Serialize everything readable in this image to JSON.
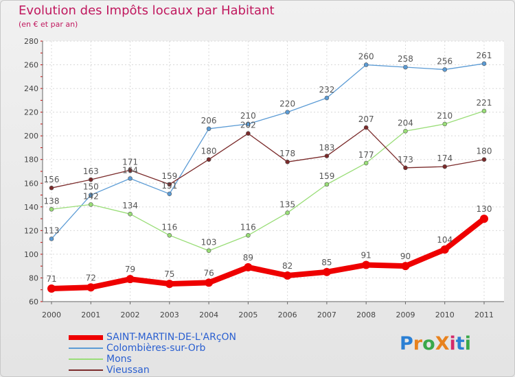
{
  "header": {
    "title": "Evolution des Impôts locaux par Habitant",
    "subtitle": "(en € et par an)"
  },
  "brand": {
    "text": "ProXiti",
    "colors": [
      "#2a7fd4",
      "#e8821e",
      "#3aa84a",
      "#e8821e",
      "#d42a6a",
      "#2a7fd4",
      "#3aa84a"
    ]
  },
  "chart_data": {
    "type": "line",
    "title": "Evolution des Impôts locaux par Habitant",
    "subtitle": "(en € et par an)",
    "xlabel": "",
    "ylabel": "",
    "categories": [
      "2000",
      "2001",
      "2002",
      "2003",
      "2004",
      "2005",
      "2006",
      "2007",
      "2008",
      "2009",
      "2010",
      "2011"
    ],
    "ylim": [
      60,
      280
    ],
    "yticks": [
      60,
      80,
      100,
      120,
      140,
      160,
      180,
      200,
      220,
      240,
      260,
      280
    ],
    "grid": true,
    "legend_position": "bottom-left",
    "series": [
      {
        "name": "SAINT-MARTIN-DE-L'ARçON",
        "color": "#ee0000",
        "emphasis": true,
        "values": [
          71,
          72,
          79,
          75,
          76,
          89,
          82,
          85,
          91,
          90,
          104,
          130
        ]
      },
      {
        "name": "Colombières-sur-Orb",
        "color": "#5b9bd5",
        "emphasis": false,
        "values": [
          113,
          150,
          164,
          151,
          206,
          210,
          220,
          232,
          260,
          258,
          256,
          261
        ]
      },
      {
        "name": "Mons",
        "color": "#99dd77",
        "emphasis": false,
        "values": [
          138,
          142,
          134,
          116,
          103,
          116,
          135,
          159,
          177,
          204,
          210,
          221
        ]
      },
      {
        "name": "Vieussan",
        "color": "#7a2a2a",
        "emphasis": false,
        "values": [
          156,
          163,
          171,
          159,
          180,
          202,
          178,
          183,
          207,
          173,
          174,
          180
        ]
      }
    ]
  }
}
